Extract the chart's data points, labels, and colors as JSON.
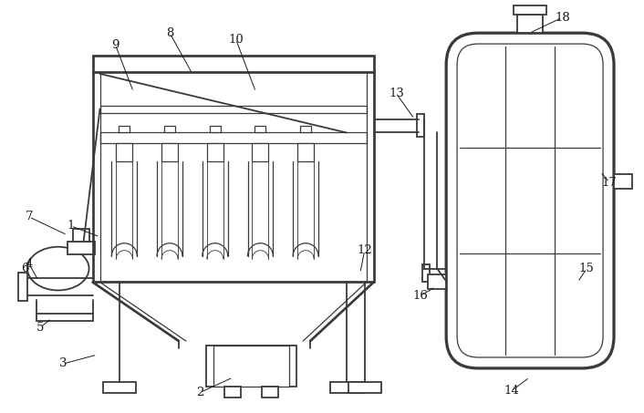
{
  "bg_color": "#ffffff",
  "line_color": "#3a3a3a",
  "line_width": 1.3,
  "thin_line": 0.9,
  "label_color": "#1a1a1a",
  "label_fontsize": 9.5
}
